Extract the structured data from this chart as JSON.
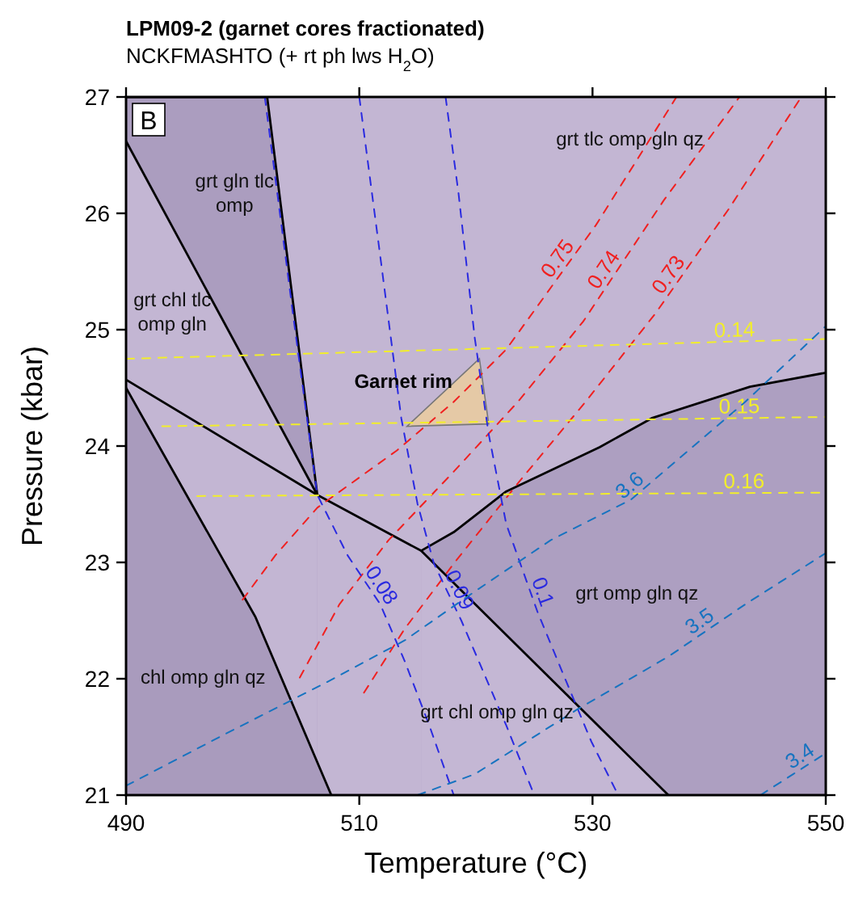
{
  "chart_data": {
    "type": "line",
    "title": "LPM09-2 (garnet cores fractionated)",
    "subtitle": "NCKFMASHTO (+ rt ph lws H$_{2}$O)",
    "xlabel": "Temperature (°C)",
    "ylabel": "Pressure (kbar)",
    "xlim": [
      490,
      550
    ],
    "ylim": [
      21,
      27
    ],
    "xticks": [
      490,
      510,
      530,
      550
    ],
    "yticks": [
      21,
      22,
      23,
      24,
      25,
      26,
      27
    ],
    "series": [
      {
        "type": "area",
        "color": "#ab9dbf",
        "x": [
          490,
          502.1,
          506.4
        ],
        "values": [
          27,
          27,
          23.58
        ]
      },
      {
        "type": "area",
        "color": "#c3b6d3",
        "x": [
          490,
          506.4
        ],
        "values": [
          26.62,
          23.58
        ]
      },
      {
        "type": "area",
        "color": "#a99bbd",
        "x": [
          490,
          501.1,
          507.6
        ],
        "values": [
          24.5,
          22.53,
          21
        ]
      },
      {
        "type": "area",
        "color": "#ad9fc1",
        "x": [
          515.3,
          518.1,
          522.6,
          530.6,
          535.1,
          543.5,
          550
        ],
        "values": [
          23.1,
          23.26,
          23.61,
          23.99,
          24.24,
          24.51,
          24.63
        ]
      },
      {
        "type": "area",
        "color": "#c4b7d4",
        "x": [
          515.3,
          536.5
        ],
        "values": [
          23.1,
          21
        ]
      },
      {
        "type": "area",
        "name": "Garnet rim",
        "color": "#e5c9a6",
        "x": [
          514.1,
          520.3,
          521.1,
          514.1
        ],
        "values": [
          24.17,
          24.75,
          24.19,
          24.17
        ]
      },
      {
        "color": "#000000",
        "line_style": "solid",
        "x": [
          490,
          506.4,
          515.3
        ],
        "values": [
          24.57,
          23.58,
          23.1
        ]
      },
      {
        "name": "0.75",
        "color": "#f02020",
        "line_style": "dashed",
        "x": [
          500.0,
          502.8,
          506.4,
          513.2,
          518.1,
          522.6,
          530.3,
          537.2
        ],
        "values": [
          22.68,
          23.06,
          23.47,
          23.96,
          24.38,
          24.83,
          25.9,
          27
        ]
      },
      {
        "name": "0.74",
        "color": "#f02020",
        "line_style": "dashed",
        "x": [
          504.9,
          508.3,
          512.5,
          518.1,
          523.6,
          529.2,
          536.1,
          542.6
        ],
        "values": [
          22.01,
          22.64,
          23.19,
          23.78,
          24.38,
          25.07,
          26.11,
          27
        ]
      },
      {
        "name": "0.73",
        "color": "#f02020",
        "line_style": "dashed",
        "x": [
          510.4,
          513.9,
          518.1,
          523.6,
          529.4,
          535.4,
          541.7,
          547.9
        ],
        "values": [
          21.88,
          22.43,
          22.99,
          23.68,
          24.38,
          25.14,
          26.04,
          27
        ]
      },
      {
        "name": "0.14",
        "color": "#f2ee2a",
        "line_style": "dashed",
        "x": [
          490,
          550
        ],
        "values": [
          24.75,
          24.92
        ]
      },
      {
        "name": "0.15",
        "color": "#f2ee2a",
        "line_style": "dashed",
        "x": [
          493.1,
          550
        ],
        "values": [
          24.17,
          24.25
        ]
      },
      {
        "name": "0.16",
        "color": "#f2ee2a",
        "line_style": "dashed",
        "x": [
          496.1,
          550
        ],
        "values": [
          23.57,
          23.6
        ]
      },
      {
        "name": "0.08",
        "color": "#2a2ae0",
        "line_style": "dashed",
        "x": [
          501.9,
          504.4,
          506.4,
          509.0,
          511.8,
          513.9,
          516.0,
          518.1
        ],
        "values": [
          27,
          25.07,
          23.58,
          23.06,
          22.64,
          22.15,
          21.6,
          21
        ]
      },
      {
        "name": "0.09",
        "color": "#2a2ae0",
        "line_style": "dashed",
        "x": [
          510.0,
          511.8,
          513.6,
          515.0,
          516.4,
          518.75,
          522.6,
          525.0
        ],
        "values": [
          27,
          25.63,
          24.24,
          23.5,
          22.99,
          22.5,
          21.6,
          21
        ]
      },
      {
        "name": "0.1",
        "color": "#2a2ae0",
        "line_style": "dashed",
        "x": [
          517.4,
          518.5,
          519.9,
          521.1,
          522.6,
          525.3,
          527.4,
          529.9,
          532.2
        ],
        "values": [
          27,
          26.18,
          24.93,
          24.1,
          23.33,
          22.57,
          22.06,
          21.46,
          21
        ]
      },
      {
        "name": "3.6",
        "color": "#1773c0",
        "line_style": "dashed",
        "x": [
          490,
          498.6,
          507.2,
          513.9,
          519.9,
          526.4,
          533.3,
          543.1,
          550
        ],
        "values": [
          21.08,
          21.53,
          21.97,
          22.33,
          22.75,
          23.19,
          23.54,
          24.38,
          25.03
        ]
      },
      {
        "name": "3.5",
        "color": "#1773c0",
        "line_style": "dashed",
        "x": [
          515,
          519.9,
          528.75,
          536.5,
          543.1,
          550
        ],
        "values": [
          21,
          21.18,
          21.74,
          22.19,
          22.64,
          23.08
        ]
      },
      {
        "name": "3.4",
        "color": "#1773c0",
        "line_style": "dashed",
        "x": [
          544.4,
          547.2,
          550
        ],
        "values": [
          21,
          21.18,
          21.36
        ]
      }
    ],
    "annotations": [
      "B",
      "grt gln tlc\nomp",
      "grt tlc omp gln qz",
      "grt chl tlc\nomp gln",
      "chl omp gln qz",
      "grt chl omp gln qz",
      "grt omp gln qz"
    ]
  }
}
